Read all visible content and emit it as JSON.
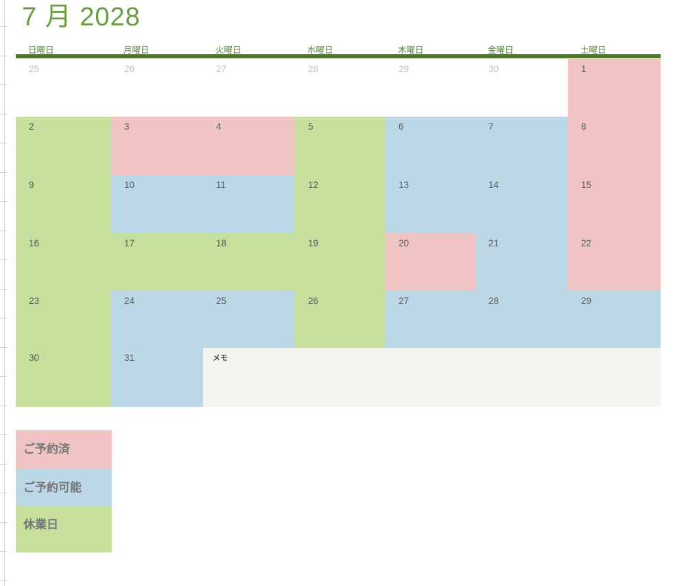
{
  "title": "7 月 2028",
  "weekday_headers": [
    "日曜日",
    "月曜日",
    "火曜日",
    "水曜日",
    "木曜日",
    "金曜日",
    "土曜日"
  ],
  "calendar": {
    "memo_label": "メモ",
    "weeks": [
      {
        "days": [
          {
            "num": "25",
            "status": "prev"
          },
          {
            "num": "26",
            "status": "prev"
          },
          {
            "num": "27",
            "status": "prev"
          },
          {
            "num": "28",
            "status": "prev"
          },
          {
            "num": "29",
            "status": "prev"
          },
          {
            "num": "30",
            "status": "prev"
          },
          {
            "num": "1",
            "status": "reserved"
          }
        ]
      },
      {
        "days": [
          {
            "num": "2",
            "status": "closed"
          },
          {
            "num": "3",
            "status": "reserved"
          },
          {
            "num": "4",
            "status": "reserved"
          },
          {
            "num": "5",
            "status": "closed"
          },
          {
            "num": "6",
            "status": "available"
          },
          {
            "num": "7",
            "status": "available"
          },
          {
            "num": "8",
            "status": "reserved"
          }
        ]
      },
      {
        "days": [
          {
            "num": "9",
            "status": "closed"
          },
          {
            "num": "10",
            "status": "available"
          },
          {
            "num": "11",
            "status": "available"
          },
          {
            "num": "12",
            "status": "closed"
          },
          {
            "num": "13",
            "status": "available"
          },
          {
            "num": "14",
            "status": "available"
          },
          {
            "num": "15",
            "status": "reserved"
          }
        ]
      },
      {
        "days": [
          {
            "num": "16",
            "status": "closed"
          },
          {
            "num": "17",
            "status": "closed"
          },
          {
            "num": "18",
            "status": "closed"
          },
          {
            "num": "19",
            "status": "closed"
          },
          {
            "num": "20",
            "status": "reserved"
          },
          {
            "num": "21",
            "status": "available"
          },
          {
            "num": "22",
            "status": "reserved"
          }
        ]
      },
      {
        "days": [
          {
            "num": "23",
            "status": "closed"
          },
          {
            "num": "24",
            "status": "available"
          },
          {
            "num": "25",
            "status": "available"
          },
          {
            "num": "26",
            "status": "closed"
          },
          {
            "num": "27",
            "status": "available"
          },
          {
            "num": "28",
            "status": "available"
          },
          {
            "num": "29",
            "status": "available"
          }
        ]
      },
      {
        "days": [
          {
            "num": "30",
            "status": "closed"
          },
          {
            "num": "31",
            "status": "available"
          }
        ]
      }
    ]
  },
  "legend": [
    {
      "label": "ご予約済",
      "status": "reserved"
    },
    {
      "label": "ご予約可能",
      "status": "available"
    },
    {
      "label": "休業日",
      "status": "closed"
    }
  ],
  "colors": {
    "reserved": "#EFC4C2",
    "available": "#BCD8E6",
    "closed": "#C7DF9C",
    "memo_bg": "#F4F4EF",
    "header_bar": "#4E7A28",
    "title_green": "#6A9D42",
    "weekday_green": "#538135",
    "day_number": "#595959",
    "prev_day_number": "#BEBEBE",
    "legend_text": "#767676",
    "gridline": "#D7D7D7"
  }
}
